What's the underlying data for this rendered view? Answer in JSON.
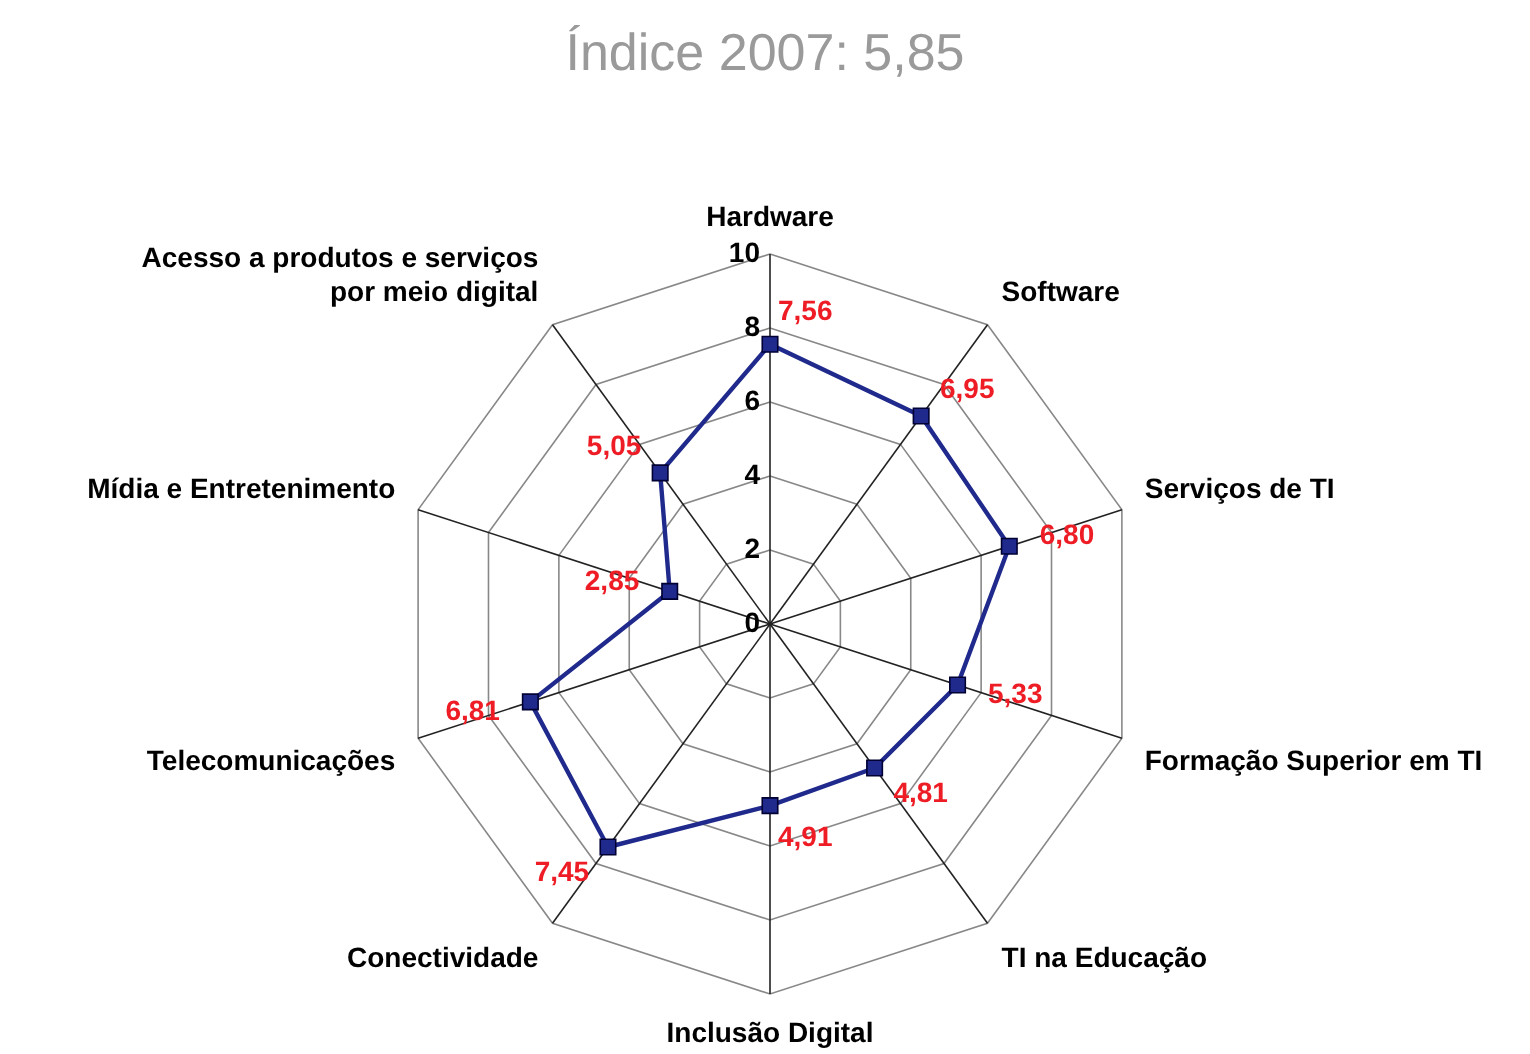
{
  "chart_data": {
    "type": "radar",
    "title": "Índice 2007: 5,85",
    "categories": [
      "Hardware",
      "Software",
      "Serviços de TI",
      "Formação Superior em TI",
      "TI na Educação",
      "Inclusão Digital",
      "Conectividade",
      "Telecomunicações",
      "Mídia e Entretenimento",
      "Acesso a produtos e serviços por meio digital"
    ],
    "series": [
      {
        "color": "#1f2a8c",
        "values": [
          7.56,
          6.95,
          6.8,
          5.33,
          4.81,
          4.91,
          7.45,
          6.81,
          2.85,
          5.05
        ],
        "value_labels": [
          "7,56",
          "6,95",
          "6,80",
          "5,33",
          "4,81",
          "4,91",
          "7,45",
          "6,81",
          "2,85",
          "5,05"
        ]
      }
    ],
    "ylim": [
      0,
      10
    ],
    "yticks": [
      0,
      2,
      4,
      6,
      8,
      10
    ],
    "grid": true,
    "marker": "square",
    "line_style": "solid"
  }
}
